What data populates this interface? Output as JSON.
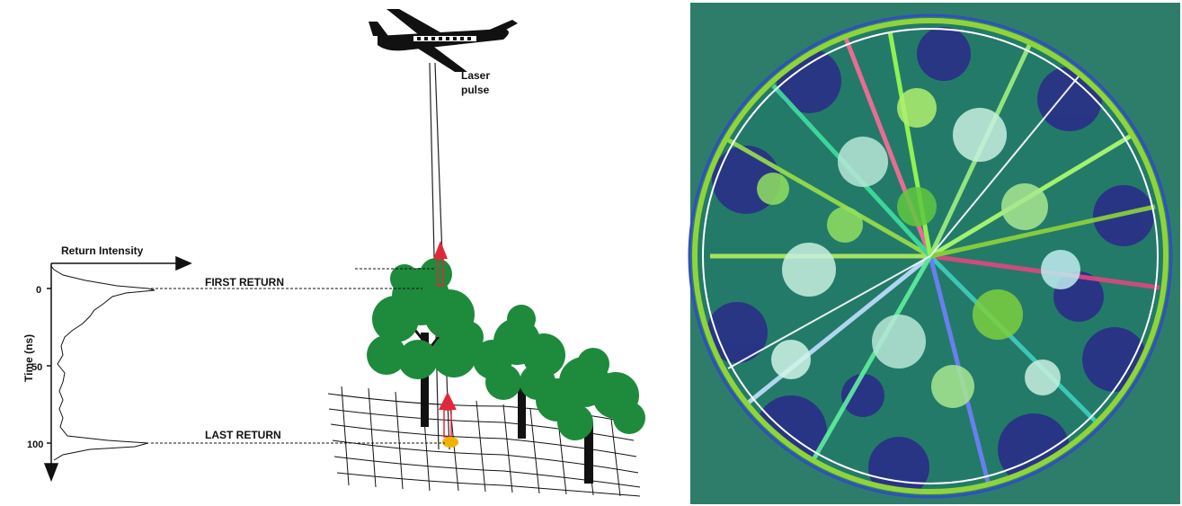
{
  "left_panel": {
    "x_axis_label": "Return Intensity",
    "y_axis_label": "Time (ns)",
    "y_ticks": [
      "0",
      "50",
      "100"
    ],
    "first_return_label": "FIRST RETURN",
    "last_return_label": "LAST RETURN",
    "laser_label_line1": "Laser",
    "laser_label_line2": "pulse"
  },
  "colors": {
    "tree_green": "#1e8a3c",
    "trunk": "#111111",
    "pulse_red": "#e0283c",
    "ground_hit": "#f0b400",
    "panel_bg": "#2e7d6a",
    "ring_green": "#8fd43a"
  },
  "right_panel": {
    "description_icon": "hemispherical-lidar-scan-image"
  }
}
